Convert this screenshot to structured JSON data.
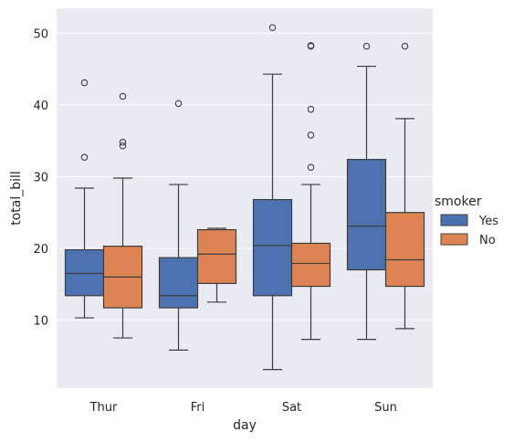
{
  "chart_data": {
    "type": "box",
    "xlabel": "day",
    "ylabel": "total_bill",
    "categories": [
      "Thur",
      "Fri",
      "Sat",
      "Sun"
    ],
    "ylim": [
      0.5,
      53.5
    ],
    "yticks": [
      10,
      20,
      30,
      40,
      50
    ],
    "grid": true,
    "legend": {
      "title": "smoker",
      "placement": "right"
    },
    "series": [
      {
        "name": "Yes",
        "color": "#4c72b0",
        "boxes": [
          {
            "whisker_low": 10.3,
            "q1": 13.4,
            "median": 16.5,
            "q3": 19.8,
            "whisker_high": 28.4,
            "outliers": [
              32.7,
              43.1
            ]
          },
          {
            "whisker_low": 5.8,
            "q1": 11.7,
            "median": 13.4,
            "q3": 18.7,
            "whisker_high": 28.9,
            "outliers": [
              40.2
            ]
          },
          {
            "whisker_low": 3.1,
            "q1": 13.4,
            "median": 20.4,
            "q3": 26.8,
            "whisker_high": 44.3,
            "outliers": [
              50.8
            ]
          },
          {
            "whisker_low": 7.3,
            "q1": 17.0,
            "median": 23.1,
            "q3": 32.4,
            "whisker_high": 45.4,
            "outliers": [
              48.2
            ]
          }
        ]
      },
      {
        "name": "No",
        "color": "#dd8452",
        "boxes": [
          {
            "whisker_low": 7.5,
            "q1": 11.7,
            "median": 16.0,
            "q3": 20.3,
            "whisker_high": 29.8,
            "outliers": [
              34.3,
              34.8,
              41.2
            ]
          },
          {
            "whisker_low": 12.5,
            "q1": 15.1,
            "median": 19.2,
            "q3": 22.6,
            "whisker_high": 22.8,
            "outliers": []
          },
          {
            "whisker_low": 7.3,
            "q1": 14.7,
            "median": 17.9,
            "q3": 20.7,
            "whisker_high": 28.9,
            "outliers": [
              31.3,
              35.8,
              39.4,
              48.2,
              48.3
            ]
          },
          {
            "whisker_low": 8.8,
            "q1": 14.7,
            "median": 18.4,
            "q3": 25.0,
            "whisker_high": 38.1,
            "outliers": [
              48.2
            ]
          }
        ]
      }
    ]
  }
}
